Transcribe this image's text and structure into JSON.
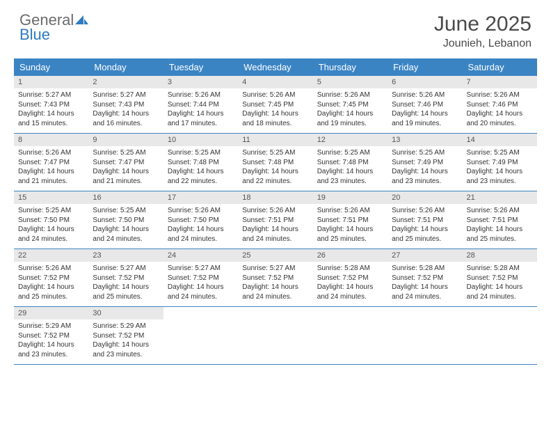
{
  "logo": {
    "word1": "General",
    "word2": "Blue",
    "color_general": "#6b6b6b",
    "color_blue": "#2d7bc0",
    "icon_color": "#2d7bc0"
  },
  "title": "June 2025",
  "location": "Jounieh, Lebanon",
  "colors": {
    "header_bg": "#3b84c4",
    "header_text": "#ffffff",
    "daynum_bg": "#e8e8e8",
    "daynum_text": "#555555",
    "body_text": "#333333",
    "rule": "#3b84c4",
    "page_bg": "#ffffff"
  },
  "day_names": [
    "Sunday",
    "Monday",
    "Tuesday",
    "Wednesday",
    "Thursday",
    "Friday",
    "Saturday"
  ],
  "weeks": [
    [
      {
        "n": "1",
        "sr": "5:27 AM",
        "ss": "7:43 PM",
        "dl": "14 hours and 15 minutes."
      },
      {
        "n": "2",
        "sr": "5:27 AM",
        "ss": "7:43 PM",
        "dl": "14 hours and 16 minutes."
      },
      {
        "n": "3",
        "sr": "5:26 AM",
        "ss": "7:44 PM",
        "dl": "14 hours and 17 minutes."
      },
      {
        "n": "4",
        "sr": "5:26 AM",
        "ss": "7:45 PM",
        "dl": "14 hours and 18 minutes."
      },
      {
        "n": "5",
        "sr": "5:26 AM",
        "ss": "7:45 PM",
        "dl": "14 hours and 19 minutes."
      },
      {
        "n": "6",
        "sr": "5:26 AM",
        "ss": "7:46 PM",
        "dl": "14 hours and 19 minutes."
      },
      {
        "n": "7",
        "sr": "5:26 AM",
        "ss": "7:46 PM",
        "dl": "14 hours and 20 minutes."
      }
    ],
    [
      {
        "n": "8",
        "sr": "5:26 AM",
        "ss": "7:47 PM",
        "dl": "14 hours and 21 minutes."
      },
      {
        "n": "9",
        "sr": "5:25 AM",
        "ss": "7:47 PM",
        "dl": "14 hours and 21 minutes."
      },
      {
        "n": "10",
        "sr": "5:25 AM",
        "ss": "7:48 PM",
        "dl": "14 hours and 22 minutes."
      },
      {
        "n": "11",
        "sr": "5:25 AM",
        "ss": "7:48 PM",
        "dl": "14 hours and 22 minutes."
      },
      {
        "n": "12",
        "sr": "5:25 AM",
        "ss": "7:48 PM",
        "dl": "14 hours and 23 minutes."
      },
      {
        "n": "13",
        "sr": "5:25 AM",
        "ss": "7:49 PM",
        "dl": "14 hours and 23 minutes."
      },
      {
        "n": "14",
        "sr": "5:25 AM",
        "ss": "7:49 PM",
        "dl": "14 hours and 23 minutes."
      }
    ],
    [
      {
        "n": "15",
        "sr": "5:25 AM",
        "ss": "7:50 PM",
        "dl": "14 hours and 24 minutes."
      },
      {
        "n": "16",
        "sr": "5:25 AM",
        "ss": "7:50 PM",
        "dl": "14 hours and 24 minutes."
      },
      {
        "n": "17",
        "sr": "5:26 AM",
        "ss": "7:50 PM",
        "dl": "14 hours and 24 minutes."
      },
      {
        "n": "18",
        "sr": "5:26 AM",
        "ss": "7:51 PM",
        "dl": "14 hours and 24 minutes."
      },
      {
        "n": "19",
        "sr": "5:26 AM",
        "ss": "7:51 PM",
        "dl": "14 hours and 25 minutes."
      },
      {
        "n": "20",
        "sr": "5:26 AM",
        "ss": "7:51 PM",
        "dl": "14 hours and 25 minutes."
      },
      {
        "n": "21",
        "sr": "5:26 AM",
        "ss": "7:51 PM",
        "dl": "14 hours and 25 minutes."
      }
    ],
    [
      {
        "n": "22",
        "sr": "5:26 AM",
        "ss": "7:52 PM",
        "dl": "14 hours and 25 minutes."
      },
      {
        "n": "23",
        "sr": "5:27 AM",
        "ss": "7:52 PM",
        "dl": "14 hours and 25 minutes."
      },
      {
        "n": "24",
        "sr": "5:27 AM",
        "ss": "7:52 PM",
        "dl": "14 hours and 24 minutes."
      },
      {
        "n": "25",
        "sr": "5:27 AM",
        "ss": "7:52 PM",
        "dl": "14 hours and 24 minutes."
      },
      {
        "n": "26",
        "sr": "5:28 AM",
        "ss": "7:52 PM",
        "dl": "14 hours and 24 minutes."
      },
      {
        "n": "27",
        "sr": "5:28 AM",
        "ss": "7:52 PM",
        "dl": "14 hours and 24 minutes."
      },
      {
        "n": "28",
        "sr": "5:28 AM",
        "ss": "7:52 PM",
        "dl": "14 hours and 24 minutes."
      }
    ],
    [
      {
        "n": "29",
        "sr": "5:29 AM",
        "ss": "7:52 PM",
        "dl": "14 hours and 23 minutes."
      },
      {
        "n": "30",
        "sr": "5:29 AM",
        "ss": "7:52 PM",
        "dl": "14 hours and 23 minutes."
      },
      null,
      null,
      null,
      null,
      null
    ]
  ],
  "labels": {
    "sunrise": "Sunrise:",
    "sunset": "Sunset:",
    "daylight": "Daylight:"
  }
}
